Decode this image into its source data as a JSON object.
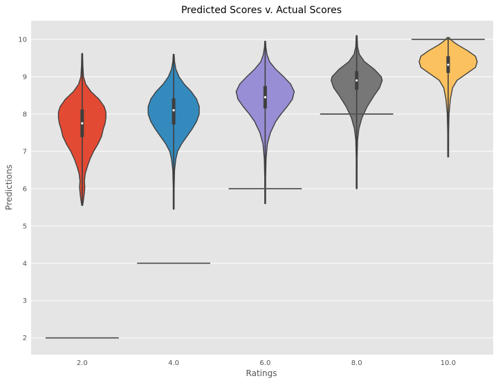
{
  "chart_data": {
    "type": "violin",
    "title": "Predicted Scores v. Actual Scores",
    "xlabel": "Ratings",
    "ylabel": "Predictions",
    "categories": [
      "2.0",
      "4.0",
      "6.0",
      "8.0",
      "10.0"
    ],
    "y_ticks": [
      "2",
      "3",
      "4",
      "5",
      "6",
      "7",
      "8",
      "9",
      "10"
    ],
    "ylim": [
      1.55,
      10.5
    ],
    "grid": true,
    "violins": [
      {
        "category": "2.0",
        "color": "#E24A33",
        "min": 5.55,
        "q1": 7.38,
        "median": 7.75,
        "q3": 8.12,
        "max": 9.62,
        "actual": 2.0,
        "density": [
          [
            5.55,
            0.01
          ],
          [
            5.7,
            0.03
          ],
          [
            5.9,
            0.05
          ],
          [
            6.05,
            0.06
          ],
          [
            6.2,
            0.05
          ],
          [
            6.4,
            0.07
          ],
          [
            6.6,
            0.12
          ],
          [
            6.8,
            0.18
          ],
          [
            7.0,
            0.26
          ],
          [
            7.2,
            0.36
          ],
          [
            7.4,
            0.44
          ],
          [
            7.6,
            0.48
          ],
          [
            7.75,
            0.52
          ],
          [
            7.9,
            0.54
          ],
          [
            8.05,
            0.54
          ],
          [
            8.2,
            0.5
          ],
          [
            8.4,
            0.38
          ],
          [
            8.6,
            0.2
          ],
          [
            8.8,
            0.08
          ],
          [
            9.0,
            0.03
          ],
          [
            9.3,
            0.015
          ],
          [
            9.62,
            0.005
          ]
        ]
      },
      {
        "category": "4.0",
        "color": "#348ABD",
        "min": 5.45,
        "q1": 7.72,
        "median": 8.1,
        "q3": 8.42,
        "max": 9.6,
        "actual": 4.0,
        "density": [
          [
            5.45,
            0.005
          ],
          [
            6.0,
            0.01
          ],
          [
            6.5,
            0.02
          ],
          [
            6.8,
            0.05
          ],
          [
            7.0,
            0.09
          ],
          [
            7.2,
            0.18
          ],
          [
            7.4,
            0.3
          ],
          [
            7.6,
            0.42
          ],
          [
            7.8,
            0.52
          ],
          [
            8.0,
            0.58
          ],
          [
            8.2,
            0.58
          ],
          [
            8.4,
            0.52
          ],
          [
            8.6,
            0.4
          ],
          [
            8.8,
            0.24
          ],
          [
            9.0,
            0.12
          ],
          [
            9.2,
            0.05
          ],
          [
            9.4,
            0.02
          ],
          [
            9.6,
            0.005
          ]
        ]
      },
      {
        "category": "6.0",
        "color": "#988ED5",
        "min": 5.6,
        "q1": 8.15,
        "median": 8.45,
        "q3": 8.75,
        "max": 9.95,
        "actual": 6.0,
        "density": [
          [
            5.6,
            0.005
          ],
          [
            6.3,
            0.01
          ],
          [
            6.8,
            0.02
          ],
          [
            7.2,
            0.05
          ],
          [
            7.5,
            0.12
          ],
          [
            7.8,
            0.24
          ],
          [
            8.0,
            0.36
          ],
          [
            8.2,
            0.5
          ],
          [
            8.4,
            0.62
          ],
          [
            8.6,
            0.66
          ],
          [
            8.8,
            0.58
          ],
          [
            9.0,
            0.42
          ],
          [
            9.2,
            0.24
          ],
          [
            9.4,
            0.1
          ],
          [
            9.6,
            0.04
          ],
          [
            9.8,
            0.015
          ],
          [
            9.95,
            0.005
          ]
        ]
      },
      {
        "category": "8.0",
        "color": "#777777",
        "min": 6.0,
        "q1": 8.65,
        "median": 8.9,
        "q3": 9.15,
        "max": 10.1,
        "actual": 8.0,
        "density": [
          [
            6.0,
            0.005
          ],
          [
            6.8,
            0.01
          ],
          [
            7.3,
            0.02
          ],
          [
            7.6,
            0.05
          ],
          [
            7.9,
            0.12
          ],
          [
            8.2,
            0.24
          ],
          [
            8.5,
            0.4
          ],
          [
            8.7,
            0.52
          ],
          [
            8.9,
            0.58
          ],
          [
            9.0,
            0.56
          ],
          [
            9.2,
            0.4
          ],
          [
            9.4,
            0.18
          ],
          [
            9.6,
            0.06
          ],
          [
            9.8,
            0.02
          ],
          [
            10.1,
            0.005
          ]
        ]
      },
      {
        "category": "10.0",
        "color": "#FBC15E",
        "min": 6.85,
        "q1": 9.1,
        "median": 9.32,
        "q3": 9.55,
        "max": 10.05,
        "actual": 10.0,
        "density": [
          [
            6.85,
            0.005
          ],
          [
            7.5,
            0.01
          ],
          [
            8.0,
            0.02
          ],
          [
            8.4,
            0.05
          ],
          [
            8.7,
            0.1
          ],
          [
            8.9,
            0.2
          ],
          [
            9.1,
            0.44
          ],
          [
            9.25,
            0.62
          ],
          [
            9.4,
            0.66
          ],
          [
            9.55,
            0.62
          ],
          [
            9.7,
            0.44
          ],
          [
            9.85,
            0.22
          ],
          [
            9.95,
            0.1
          ],
          [
            10.05,
            0.02
          ]
        ]
      }
    ]
  }
}
